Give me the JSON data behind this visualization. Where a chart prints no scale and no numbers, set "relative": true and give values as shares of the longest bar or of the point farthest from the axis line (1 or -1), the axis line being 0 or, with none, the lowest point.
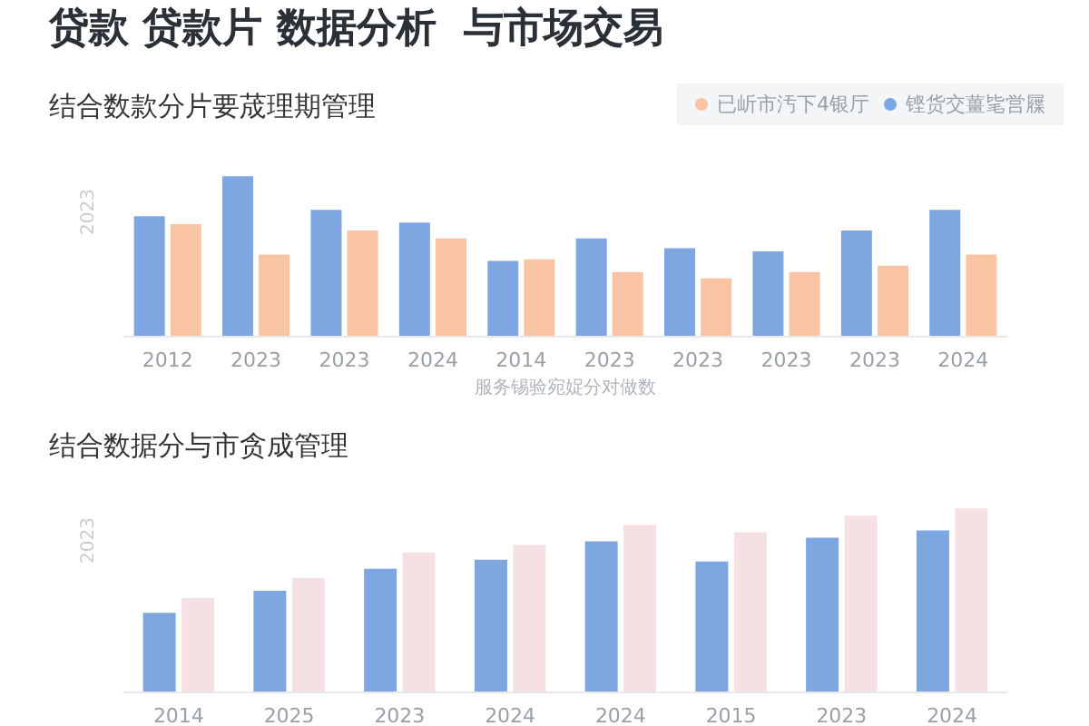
{
  "chart_data": [
    {
      "type": "bar",
      "title": "贷款 贷款片 数据分析  与市场交易",
      "subtitle": "结合数款分片要荿理期管理",
      "xlabel": "服务锡验宛娖分对做数",
      "ylabel": "2023",
      "relative": true,
      "categories": [
        "2012",
        "2023",
        "2023",
        "2024",
        "2014",
        "2023",
        "2023",
        "2023",
        "2023",
        "2024"
      ],
      "series": [
        {
          "name": "铿货交薑毞営屧",
          "color": "#7ea6e0",
          "values": [
            0.75,
            1,
            0.79,
            0.71,
            0.47,
            0.61,
            0.55,
            0.53,
            0.66,
            0.79
          ]
        },
        {
          "name": "已岓市汚下4银厅",
          "color": "#f8c4a4",
          "values": [
            0.7,
            0.51,
            0.66,
            0.61,
            0.48,
            0.4,
            0.36,
            0.4,
            0.44,
            0.51
          ]
        }
      ],
      "legend": "top right"
    },
    {
      "type": "bar",
      "title": "结合数据分与市贪成管理",
      "ylabel": "2023",
      "relative": true,
      "categories": [
        "2014",
        "2025",
        "2023",
        "2024",
        "2024",
        "2015",
        "2023",
        "2024"
      ],
      "series": [
        {
          "color": "#7ea6e0",
          "values": [
            0.43,
            0.55,
            0.67,
            0.72,
            0.82,
            0.71,
            0.84,
            0.88
          ]
        },
        {
          "color": "#f5e1e4",
          "values": [
            0.51,
            0.62,
            0.76,
            0.8,
            0.91,
            0.87,
            0.96,
            1
          ]
        }
      ]
    }
  ]
}
